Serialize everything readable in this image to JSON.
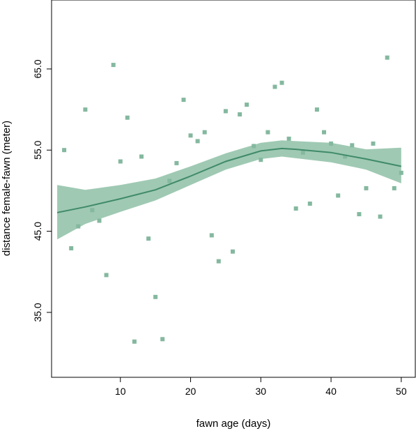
{
  "chart_data": {
    "type": "scatter",
    "title": "",
    "xlabel": "fawn age (days)",
    "ylabel": "distance female-fawn (meter)",
    "xlim": [
      0.2,
      52
    ],
    "ylim": [
      27,
      73.5
    ],
    "xticks": [
      10,
      20,
      30,
      40,
      50
    ],
    "xtick_labels": [
      "10",
      "20",
      "30",
      "40",
      "50"
    ],
    "yticks": [
      35,
      45,
      55,
      65
    ],
    "ytick_labels": [
      "35.0",
      "45.0",
      "55.0",
      "65.0"
    ],
    "grid": false,
    "legend": "none",
    "colors": {
      "points": "#84b89f",
      "band": "#8ec0a6",
      "line": "#3f8a68",
      "axis": "#000000"
    },
    "points": {
      "x": [
        2,
        3,
        4,
        5,
        6,
        7,
        8,
        9,
        10,
        11,
        12,
        13,
        14,
        15,
        16,
        17,
        18,
        19,
        20,
        21,
        22,
        23,
        24,
        25,
        26,
        27,
        28,
        29,
        30,
        31,
        32,
        33,
        34,
        35,
        36,
        37,
        38,
        39,
        40,
        41,
        42,
        43,
        44,
        45,
        46,
        47,
        48,
        49,
        50
      ],
      "y": [
        55.0,
        42.9,
        45.6,
        60.0,
        47.6,
        46.3,
        39.6,
        65.5,
        53.6,
        59.0,
        31.4,
        54.2,
        44.1,
        36.9,
        31.7,
        51.2,
        53.4,
        61.2,
        56.8,
        56.1,
        57.2,
        44.5,
        41.3,
        59.8,
        42.5,
        59.4,
        60.6,
        55.5,
        53.8,
        57.2,
        62.8,
        63.3,
        56.4,
        47.8,
        54.7,
        48.4,
        60.0,
        57.2,
        55.8,
        49.4,
        54.2,
        55.6,
        47.1,
        50.3,
        55.8,
        46.8,
        66.4,
        50.3,
        52.2
      ]
    },
    "smooth_fit": {
      "x": [
        1,
        5,
        10,
        15,
        20,
        25,
        30,
        33,
        35,
        40,
        45,
        50
      ],
      "y": [
        47.3,
        48.0,
        49.0,
        50.1,
        51.8,
        53.6,
        54.9,
        55.2,
        55.1,
        54.7,
        53.9,
        53.0
      ],
      "lower": [
        44.0,
        45.9,
        47.4,
        48.8,
        50.7,
        52.6,
        53.9,
        54.2,
        54.0,
        53.5,
        52.6,
        50.9
      ],
      "upper": [
        50.7,
        50.1,
        50.7,
        51.5,
        53.0,
        54.6,
        55.9,
        56.2,
        56.1,
        55.9,
        55.1,
        55.3
      ]
    }
  }
}
